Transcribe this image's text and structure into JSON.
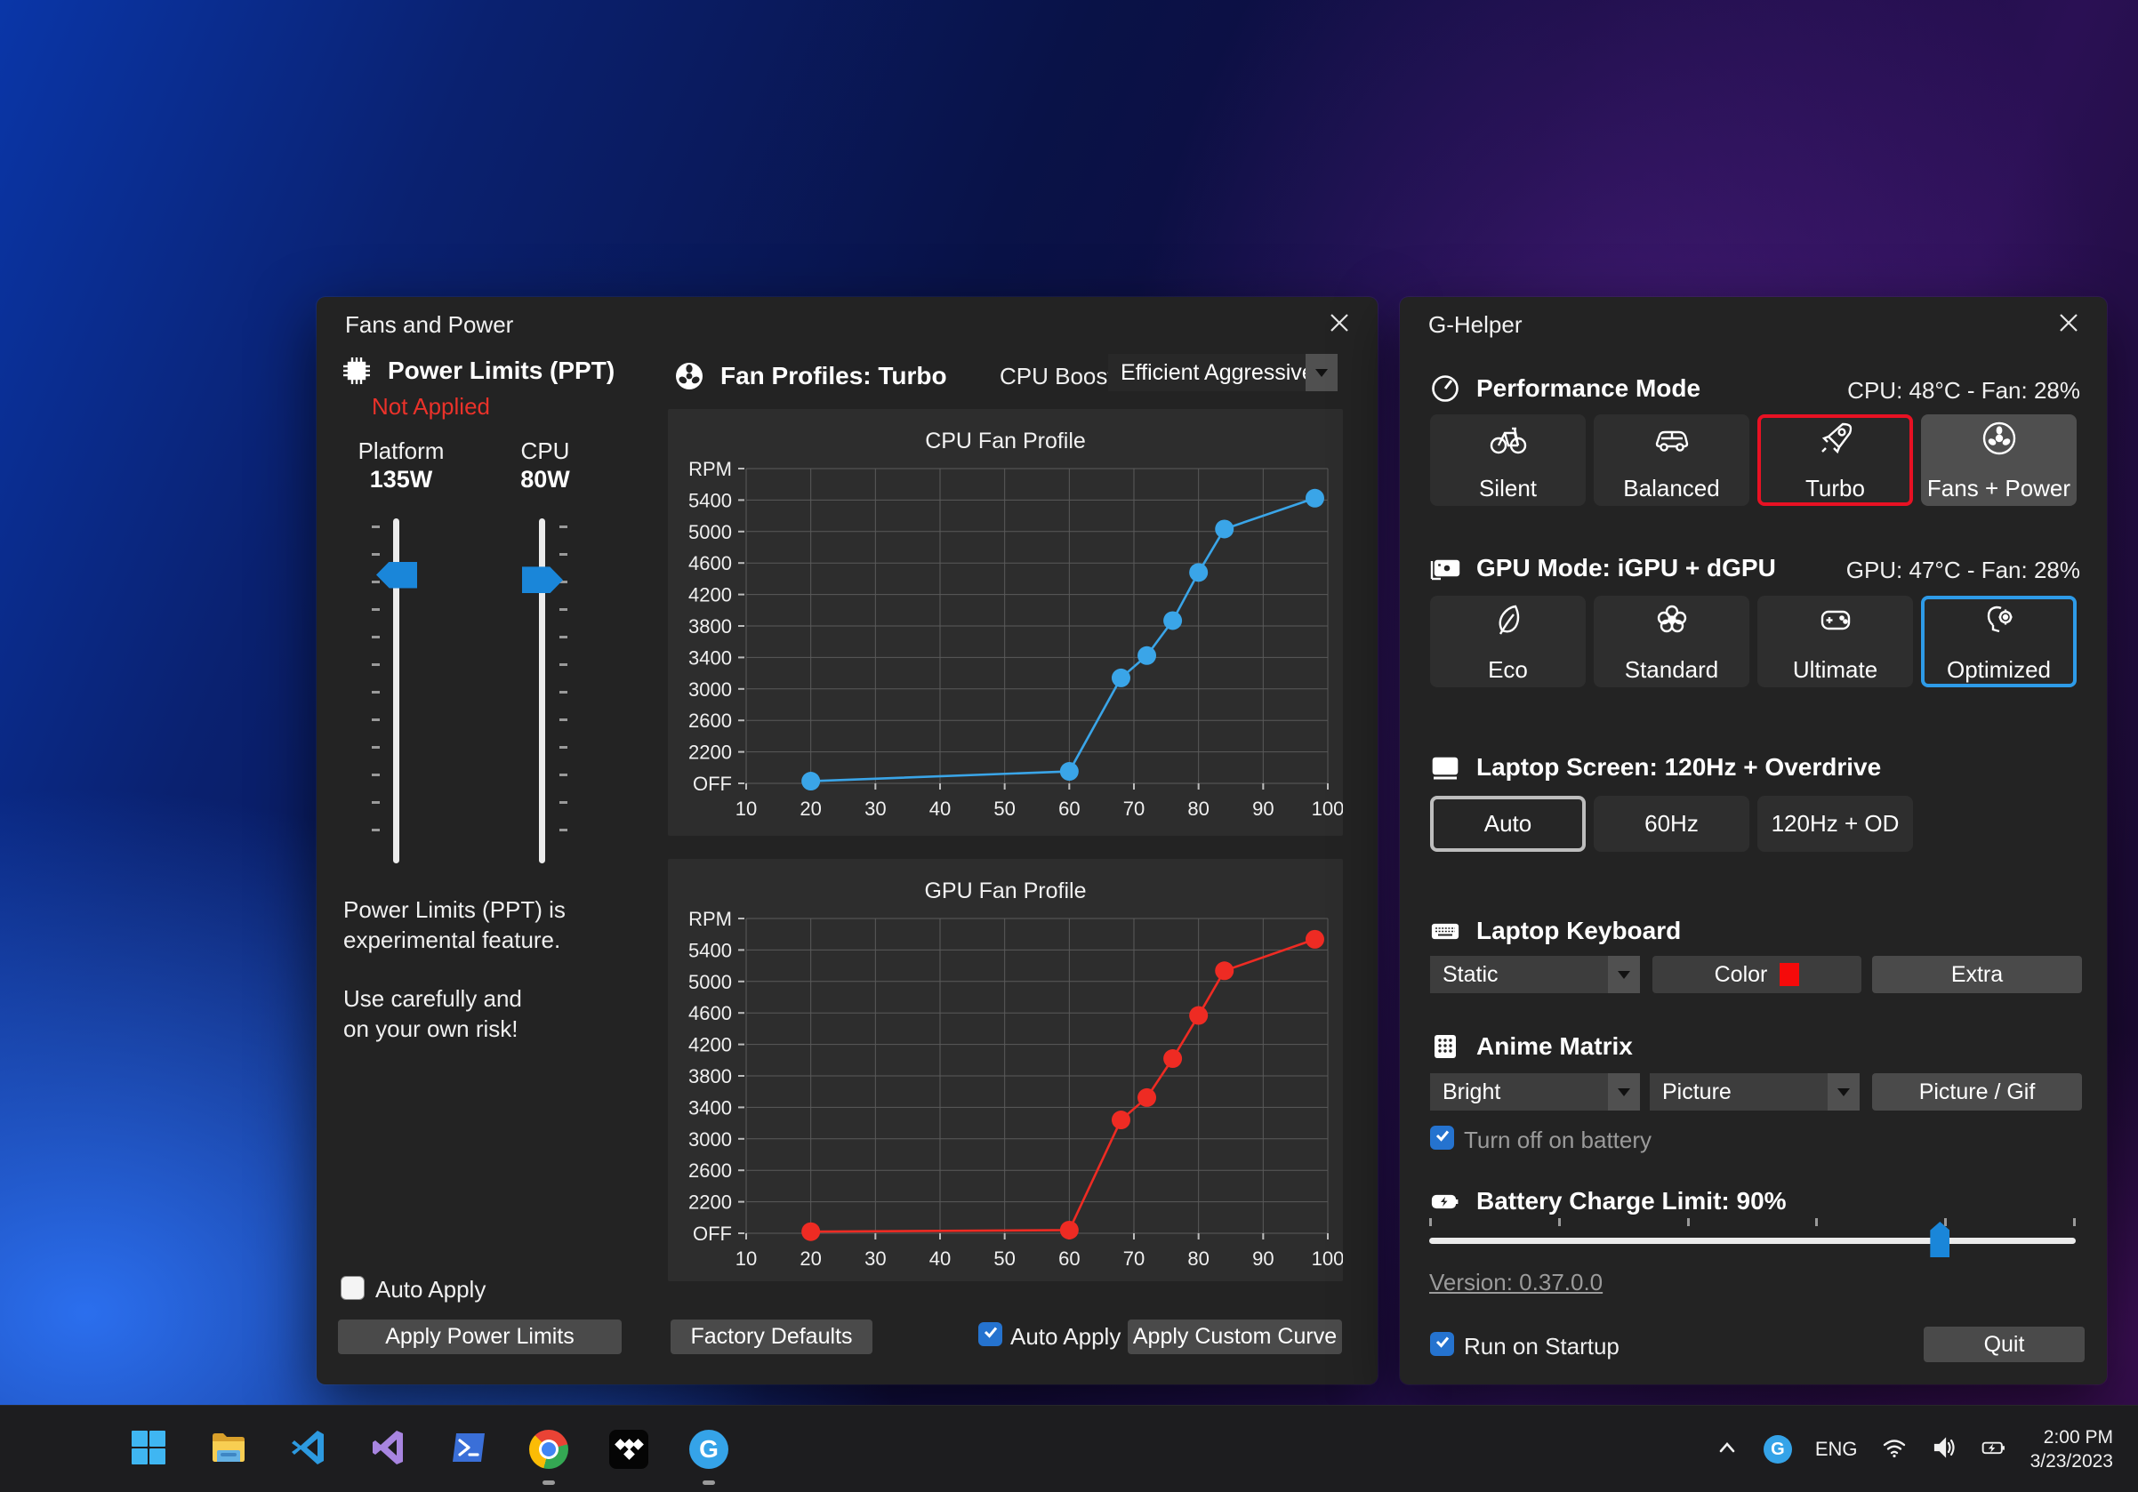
{
  "fans_window": {
    "title": "Fans and Power",
    "power": {
      "heading": "Power Limits (PPT)",
      "status": "Not Applied",
      "platform_label": "Platform",
      "platform_value": "135W",
      "cpu_label": "CPU",
      "cpu_value": "80W",
      "platform_thumb_pct": 12.5,
      "cpu_thumb_pct": 14,
      "note_line1": "Power Limits (PPT) is",
      "note_line2": "experimental feature.",
      "note_line3": "Use carefully and",
      "note_line4": "on your own risk!",
      "auto_apply_label": "Auto Apply",
      "apply_button": "Apply Power Limits"
    },
    "fans": {
      "heading": "Fan Profiles: Turbo",
      "boost_label": "CPU Boost",
      "boost_value": "Efficient Aggressive",
      "factory_button": "Factory Defaults",
      "auto_apply_label": "Auto Apply",
      "apply_button": "Apply Custom Curve"
    }
  },
  "chart_data": [
    {
      "type": "line",
      "title": "CPU Fan Profile",
      "series_name": "CPU fan curve",
      "color": "#3aa5e8",
      "y_labels": [
        "RPM",
        "5400",
        "5000",
        "4600",
        "4200",
        "3800",
        "3400",
        "3000",
        "2600",
        "2200",
        "OFF"
      ],
      "x_ticks": [
        10,
        20,
        30,
        40,
        50,
        60,
        70,
        80,
        90,
        100
      ],
      "xlim": [
        10,
        100
      ],
      "grid": true,
      "unit_note": "unit = gridline steps above OFF axis line (each step = one y gridline)",
      "points": [
        {
          "x": 20,
          "rpm": "OFF",
          "unit": 0.07
        },
        {
          "x": 60,
          "rpm": "~900",
          "unit": 0.38
        },
        {
          "x": 68,
          "rpm": "~3150",
          "unit": 3.35
        },
        {
          "x": 72,
          "rpm": "~3430",
          "unit": 4.06
        },
        {
          "x": 76,
          "rpm": "~3870",
          "unit": 5.17
        },
        {
          "x": 80,
          "rpm": "~4480",
          "unit": 6.7
        },
        {
          "x": 84,
          "rpm": "~5030",
          "unit": 8.08
        },
        {
          "x": 98,
          "rpm": "~5420",
          "unit": 9.06
        }
      ]
    },
    {
      "type": "line",
      "title": "GPU Fan Profile",
      "series_name": "GPU fan curve",
      "color": "#ee2b23",
      "y_labels": [
        "RPM",
        "5400",
        "5000",
        "4600",
        "4200",
        "3800",
        "3400",
        "3000",
        "2600",
        "2200",
        "OFF"
      ],
      "x_ticks": [
        10,
        20,
        30,
        40,
        50,
        60,
        70,
        80,
        90,
        100
      ],
      "xlim": [
        10,
        100
      ],
      "grid": true,
      "unit_note": "unit = gridline steps above OFF axis line (each step = one y gridline)",
      "points": [
        {
          "x": 20,
          "rpm": "OFF",
          "unit": 0.05
        },
        {
          "x": 60,
          "rpm": "OFF",
          "unit": 0.1
        },
        {
          "x": 68,
          "rpm": "~3380",
          "unit": 3.6
        },
        {
          "x": 72,
          "rpm": "~3660",
          "unit": 4.31
        },
        {
          "x": 76,
          "rpm": "~4160",
          "unit": 5.55
        },
        {
          "x": 80,
          "rpm": "~4670",
          "unit": 6.92
        },
        {
          "x": 84,
          "rpm": "~5240",
          "unit": 8.34
        },
        {
          "x": 98,
          "rpm": "~5640",
          "unit": 9.34
        }
      ]
    }
  ],
  "ghelper": {
    "title": "G-Helper",
    "performance": {
      "heading": "Performance Mode",
      "status": "CPU: 48°C -  Fan: 28%",
      "buttons": [
        {
          "label": "Silent"
        },
        {
          "label": "Balanced"
        },
        {
          "label": "Turbo",
          "selected": true
        },
        {
          "label": "Fans + Power"
        }
      ]
    },
    "gpu": {
      "heading": "GPU Mode: iGPU + dGPU",
      "status": "GPU: 47°C -  Fan: 28%",
      "buttons": [
        {
          "label": "Eco"
        },
        {
          "label": "Standard"
        },
        {
          "label": "Ultimate"
        },
        {
          "label": "Optimized",
          "selected": true
        }
      ]
    },
    "screen": {
      "heading": "Laptop Screen: 120Hz + Overdrive",
      "buttons": [
        {
          "label": "Auto",
          "selected": true
        },
        {
          "label": "60Hz"
        },
        {
          "label": "120Hz + OD"
        }
      ]
    },
    "keyboard": {
      "heading": "Laptop Keyboard",
      "mode_value": "Static",
      "color_button": "Color",
      "color_swatch": "#f50a0a",
      "extra_button": "Extra"
    },
    "anime": {
      "heading": "Anime Matrix",
      "brightness_value": "Bright",
      "mode_value": "Picture",
      "gif_button": "Picture / Gif",
      "battery_checkbox_label": "Turn off on battery"
    },
    "battery": {
      "heading": "Battery Charge Limit: 90%",
      "slider_pct": 79
    },
    "version_link": "Version: 0.37.0.0",
    "startup_checkbox_label": "Run on Startup",
    "quit_button": "Quit"
  },
  "taskbar": {
    "g_letter": "G",
    "tray": {
      "lang": "ENG",
      "time": "2:00 PM",
      "date": "3/23/2023"
    }
  },
  "colors": {
    "accent_blue": "#2e9be8",
    "accent_red": "#e81123",
    "check_blue": "#2573cf",
    "chart_cpu": "#3aa5e8",
    "chart_gpu": "#ee2b23"
  }
}
